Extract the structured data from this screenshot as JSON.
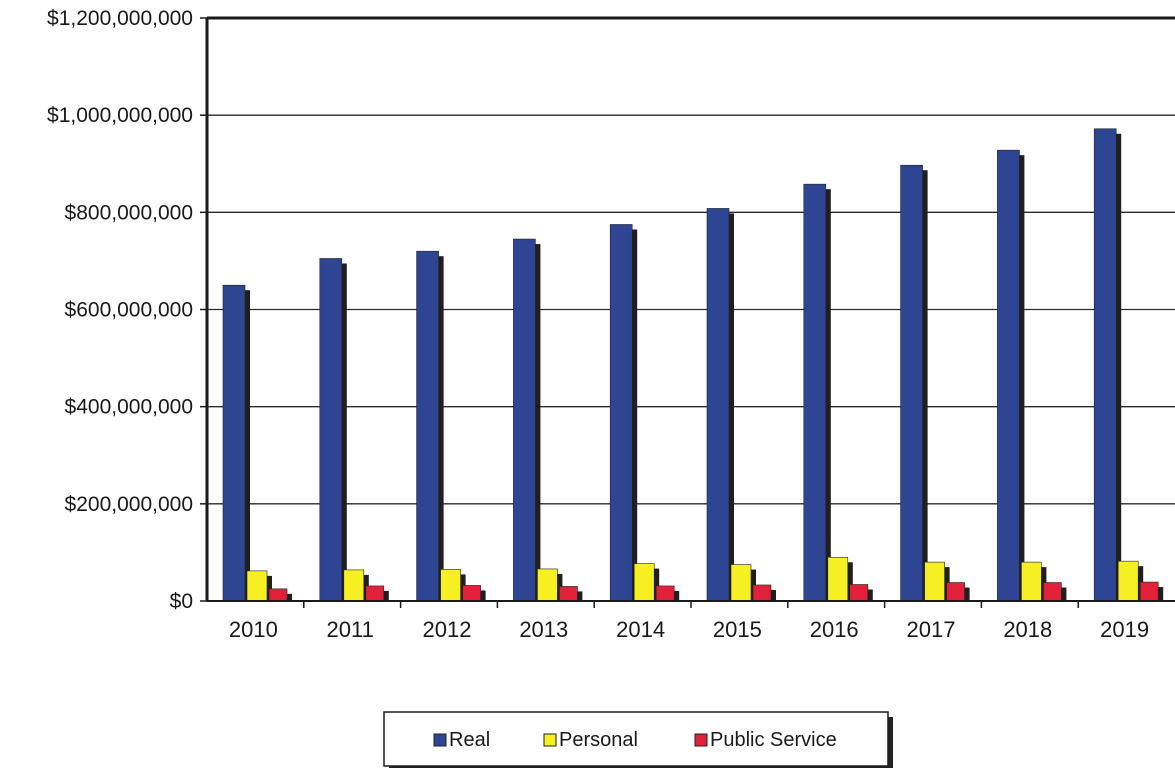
{
  "chart_data": {
    "type": "bar",
    "title": "",
    "xlabel": "",
    "ylabel": "",
    "categories": [
      "2010",
      "2011",
      "2012",
      "2013",
      "2014",
      "2015",
      "2016",
      "2017",
      "2018",
      "2019"
    ],
    "series": [
      {
        "name": "Real",
        "color": "#2e4594",
        "values": [
          650000000,
          705000000,
          720000000,
          745000000,
          775000000,
          808000000,
          858000000,
          897000000,
          928000000,
          972000000
        ]
      },
      {
        "name": "Personal",
        "color": "#f6f023",
        "values": [
          62000000,
          64000000,
          65000000,
          66000000,
          77000000,
          75000000,
          90000000,
          80000000,
          80000000,
          82000000
        ]
      },
      {
        "name": "Public Service",
        "color": "#e3203a",
        "values": [
          25000000,
          31000000,
          32000000,
          30000000,
          31000000,
          33000000,
          34000000,
          38000000,
          38000000,
          39000000
        ]
      }
    ],
    "ylim": [
      0,
      1200000000
    ],
    "yticks": [
      0,
      200000000,
      400000000,
      600000000,
      800000000,
      1000000000,
      1200000000
    ],
    "ytick_labels": [
      "$0",
      "$200,000,000",
      "$400,000,000",
      "$600,000,000",
      "$800,000,000",
      "$1,000,000,000",
      "$1,200,000,000"
    ],
    "grid": true,
    "legend_position": "bottom-center"
  }
}
